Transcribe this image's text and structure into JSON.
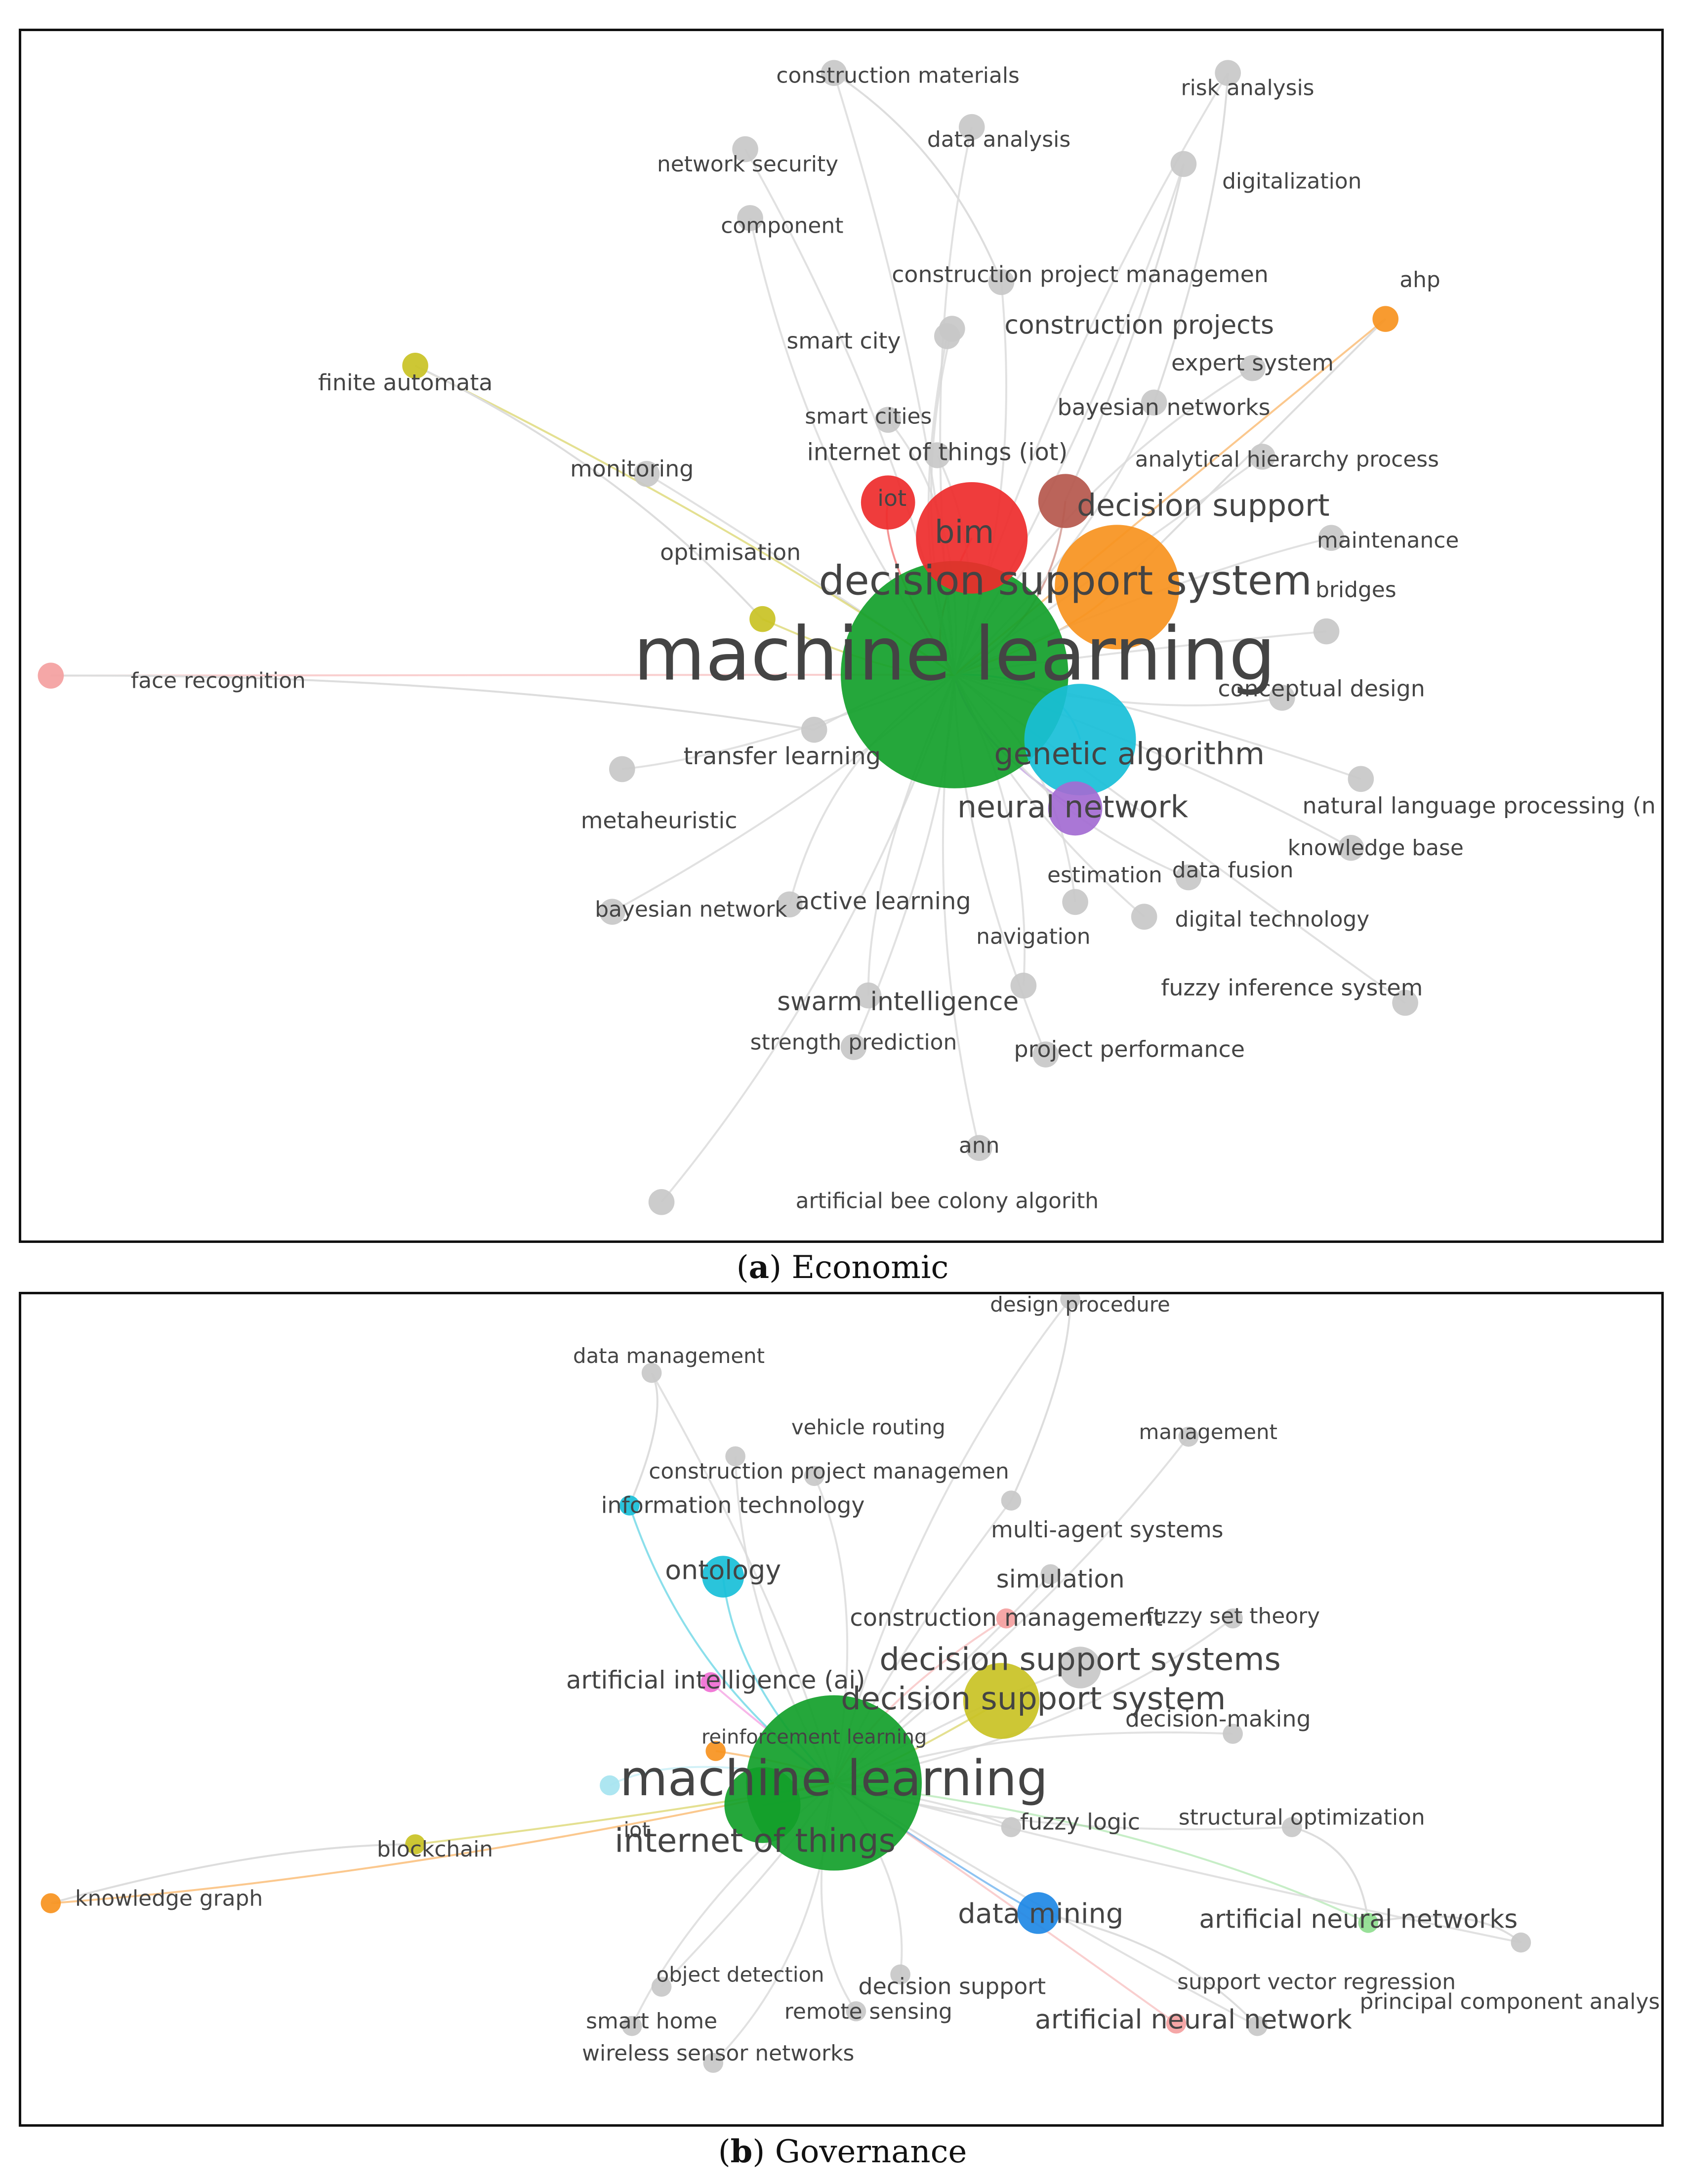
{
  "captions": {
    "a": {
      "letter": "a",
      "title": "Economic"
    },
    "b": {
      "letter": "b",
      "title": "Governance"
    }
  },
  "colors": {
    "gray": "#c8c8c8",
    "green": "#12a02a",
    "red": "#ee2b2b",
    "orange": "#f7921e",
    "cyan": "#18bfd8",
    "purple": "#a36bd2",
    "olive": "#c9c224",
    "brown": "#b5574c",
    "lightblue": "#9ec3ea",
    "pink": "#f06fd4",
    "salmon": "#f4a0a0",
    "blue": "#1e88e5",
    "lightgreen": "#8fdd8f",
    "lightcyan": "#a6e4f0"
  },
  "network_a": {
    "nodes": [
      {
        "id": "ml",
        "label": "machine learning",
        "weight": 10,
        "color": "green"
      },
      {
        "id": "dss",
        "label": "decision support system",
        "weight": 5,
        "color": "orange"
      },
      {
        "id": "bim",
        "label": "bim",
        "weight": 4,
        "color": "red"
      },
      {
        "id": "ga",
        "label": "genetic algorithm",
        "weight": 4,
        "color": "cyan"
      },
      {
        "id": "nn",
        "label": "neural network",
        "weight": 2,
        "color": "purple"
      },
      {
        "id": "ds",
        "label": "decision support",
        "weight": 2,
        "color": "brown"
      },
      {
        "id": "iot",
        "label": "iot",
        "weight": 2,
        "color": "red"
      },
      {
        "id": "iotl",
        "label": "internet of things (iot)",
        "weight": 1,
        "color": "gray"
      },
      {
        "id": "sc",
        "label": "smart city",
        "weight": 1,
        "color": "gray"
      },
      {
        "id": "scs",
        "label": "smart cities",
        "weight": 1,
        "color": "gray"
      },
      {
        "id": "cp",
        "label": "construction projects",
        "weight": 1,
        "color": "gray"
      },
      {
        "id": "cpm",
        "label": "construction project managemen",
        "weight": 1,
        "color": "gray"
      },
      {
        "id": "es",
        "label": "expert system",
        "weight": 1,
        "color": "gray"
      },
      {
        "id": "bn",
        "label": "bayesian networks",
        "weight": 1,
        "color": "gray"
      },
      {
        "id": "ahp2",
        "label": "analytical hierarchy process",
        "weight": 1,
        "color": "gray"
      },
      {
        "id": "maint",
        "label": "maintenance",
        "weight": 1,
        "color": "gray"
      },
      {
        "id": "br",
        "label": "bridges",
        "weight": 1,
        "color": "gray"
      },
      {
        "id": "cd",
        "label": "conceptual design",
        "weight": 1,
        "color": "gray"
      },
      {
        "id": "nlp",
        "label": "natural language processing (n",
        "weight": 1,
        "color": "gray"
      },
      {
        "id": "kb",
        "label": "knowledge base",
        "weight": 1,
        "color": "gray"
      },
      {
        "id": "df",
        "label": "data fusion",
        "weight": 1,
        "color": "gray"
      },
      {
        "id": "est",
        "label": "estimation",
        "weight": 1,
        "color": "gray"
      },
      {
        "id": "dt",
        "label": "digital technology",
        "weight": 1,
        "color": "gray"
      },
      {
        "id": "fis",
        "label": "fuzzy inference system",
        "weight": 1,
        "color": "gray"
      },
      {
        "id": "pp",
        "label": "project performance",
        "weight": 1,
        "color": "gray"
      },
      {
        "id": "nav",
        "label": "navigation",
        "weight": 1,
        "color": "gray"
      },
      {
        "id": "si",
        "label": "swarm intelligence",
        "weight": 1,
        "color": "gray"
      },
      {
        "id": "sp",
        "label": "strength prediction",
        "weight": 1,
        "color": "gray"
      },
      {
        "id": "ann",
        "label": "ann",
        "weight": 1,
        "color": "gray"
      },
      {
        "id": "abc",
        "label": "artificial bee colony algorith",
        "weight": 1,
        "color": "gray"
      },
      {
        "id": "al",
        "label": "active learning",
        "weight": 1,
        "color": "gray"
      },
      {
        "id": "bn1",
        "label": "bayesian network",
        "weight": 1,
        "color": "gray"
      },
      {
        "id": "mh",
        "label": "metaheuristic",
        "weight": 1,
        "color": "gray"
      },
      {
        "id": "tl",
        "label": "transfer learning",
        "weight": 1,
        "color": "gray"
      },
      {
        "id": "fr",
        "label": "face recognition",
        "weight": 1,
        "color": "salmon"
      },
      {
        "id": "opt",
        "label": "optimisation",
        "weight": 1,
        "color": "olive"
      },
      {
        "id": "mon",
        "label": "monitoring",
        "weight": 1,
        "color": "gray"
      },
      {
        "id": "fa",
        "label": "finite automata",
        "weight": 1,
        "color": "olive"
      },
      {
        "id": "ahp",
        "label": "ahp",
        "weight": 1,
        "color": "orange"
      },
      {
        "id": "dig",
        "label": "digitalization",
        "weight": 1,
        "color": "gray"
      },
      {
        "id": "ra",
        "label": "risk analysis",
        "weight": 1,
        "color": "gray"
      },
      {
        "id": "cm",
        "label": "construction materials",
        "weight": 1,
        "color": "gray"
      },
      {
        "id": "da",
        "label": "data analysis",
        "weight": 1,
        "color": "gray"
      },
      {
        "id": "ns",
        "label": "network security",
        "weight": 1,
        "color": "gray"
      },
      {
        "id": "comp",
        "label": "component",
        "weight": 1,
        "color": "gray"
      }
    ]
  },
  "network_b": {
    "nodes": [
      {
        "id": "ml",
        "label": "machine learning",
        "weight": 10,
        "color": "green"
      },
      {
        "id": "iot",
        "label": "internet of things",
        "weight": 3,
        "color": "green"
      },
      {
        "id": "dss",
        "label": "decision support system",
        "weight": 3,
        "color": "olive"
      },
      {
        "id": "dsss",
        "label": "decision support systems",
        "weight": 2,
        "color": "gray"
      },
      {
        "id": "onto",
        "label": "ontology",
        "weight": 2,
        "color": "cyan"
      },
      {
        "id": "dm",
        "label": "data mining",
        "weight": 2,
        "color": "blue"
      },
      {
        "id": "ai",
        "label": "artificial intelligence (ai)",
        "weight": 1,
        "color": "pink"
      },
      {
        "id": "rl",
        "label": "reinforcement learning",
        "weight": 1,
        "color": "orange"
      },
      {
        "id": "it",
        "label": "information technology",
        "weight": 1,
        "color": "cyan"
      },
      {
        "id": "cpm",
        "label": "construction project managemen",
        "weight": 1,
        "color": "gray"
      },
      {
        "id": "vr",
        "label": "vehicle routing",
        "weight": 1,
        "color": "gray"
      },
      {
        "id": "dmg",
        "label": "data management",
        "weight": 1,
        "color": "gray"
      },
      {
        "id": "dp",
        "label": "design procedure",
        "weight": 1,
        "color": "gray"
      },
      {
        "id": "mgmt",
        "label": "management",
        "weight": 1,
        "color": "gray"
      },
      {
        "id": "mas",
        "label": "multi-agent systems",
        "weight": 1,
        "color": "gray"
      },
      {
        "id": "sim",
        "label": "simulation",
        "weight": 1,
        "color": "gray"
      },
      {
        "id": "cm",
        "label": "construction management",
        "weight": 1,
        "color": "salmon"
      },
      {
        "id": "fst",
        "label": "fuzzy set theory",
        "weight": 1,
        "color": "gray"
      },
      {
        "id": "dmk",
        "label": "decision-making",
        "weight": 1,
        "color": "gray"
      },
      {
        "id": "fl",
        "label": "fuzzy logic",
        "weight": 1,
        "color": "gray"
      },
      {
        "id": "so",
        "label": "structural optimization",
        "weight": 1,
        "color": "gray"
      },
      {
        "id": "anns",
        "label": "artificial neural networks",
        "weight": 1,
        "color": "lightgreen"
      },
      {
        "id": "pca",
        "label": "principal component analysis",
        "weight": 1,
        "color": "gray"
      },
      {
        "id": "svr",
        "label": "support vector regression",
        "weight": 1,
        "color": "gray"
      },
      {
        "id": "ann",
        "label": "artificial neural network",
        "weight": 1,
        "color": "salmon"
      },
      {
        "id": "ds",
        "label": "decision support",
        "weight": 1,
        "color": "gray"
      },
      {
        "id": "rs",
        "label": "remote sensing",
        "weight": 1,
        "color": "gray"
      },
      {
        "id": "od",
        "label": "object detection",
        "weight": 1,
        "color": "gray"
      },
      {
        "id": "sh",
        "label": "smart home",
        "weight": 1,
        "color": "gray"
      },
      {
        "id": "wsn",
        "label": "wireless sensor networks",
        "weight": 1,
        "color": "gray"
      },
      {
        "id": "iot2",
        "label": "iot",
        "weight": 1,
        "color": "lightcyan"
      },
      {
        "id": "bc",
        "label": "blockchain",
        "weight": 1,
        "color": "olive"
      },
      {
        "id": "kg",
        "label": "knowledge graph",
        "weight": 1,
        "color": "orange"
      }
    ]
  }
}
